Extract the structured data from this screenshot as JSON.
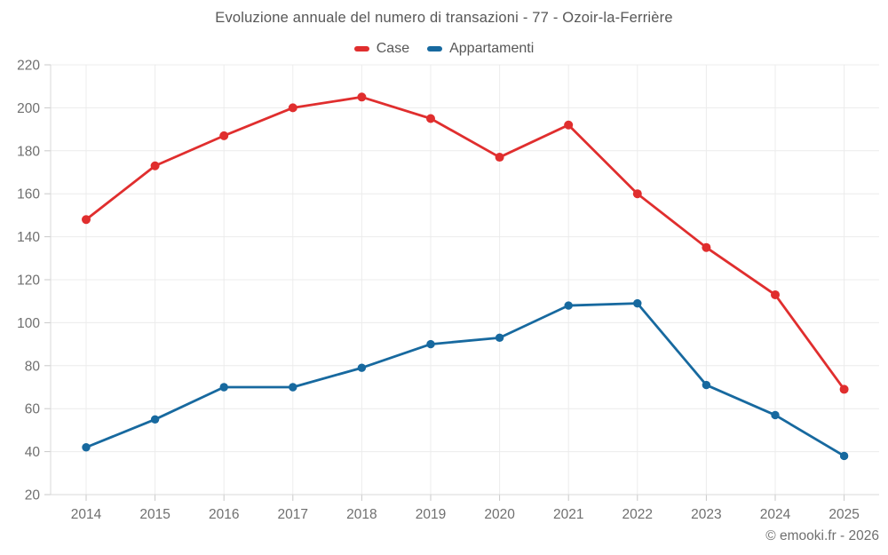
{
  "page": {
    "footer": "© emooki.fr - 2026"
  },
  "chart_data": {
    "type": "line",
    "title": "Evoluzione annuale del numero di transazioni - 77 - Ozoir-la-Ferrière",
    "categories": [
      "2014",
      "2015",
      "2016",
      "2017",
      "2018",
      "2019",
      "2020",
      "2021",
      "2022",
      "2023",
      "2024",
      "2025"
    ],
    "series": [
      {
        "name": "Case",
        "color": "#e02e2e",
        "values": [
          148,
          173,
          187,
          200,
          205,
          195,
          177,
          192,
          160,
          135,
          113,
          69
        ]
      },
      {
        "name": "Appartamenti",
        "color": "#17699f",
        "values": [
          42,
          55,
          70,
          70,
          79,
          90,
          93,
          108,
          109,
          71,
          57,
          38
        ]
      }
    ],
    "xlabel": "",
    "ylabel": "",
    "ylim": [
      20,
      220
    ],
    "ytick_step": 20,
    "grid": true,
    "legend_position": "top",
    "marker": "circle"
  },
  "style": {
    "grid_color": "#ececec",
    "axis_color": "#d9d9d9",
    "tick_color": "#c9c9c9",
    "label_color": "#6f6f6f",
    "title_color": "#575757"
  }
}
